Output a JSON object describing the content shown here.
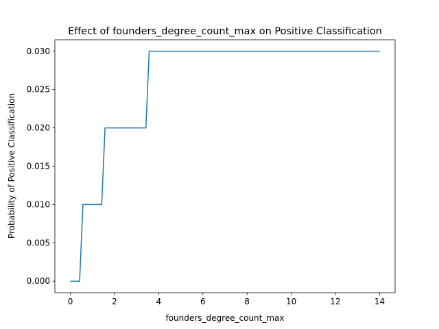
{
  "chart_data": {
    "type": "line",
    "title": "Effect of founders_degree_count_max on Positive Classification",
    "xlabel": "founders_degree_count_max",
    "ylabel": "Probability of Positive Classification",
    "xlim": [
      -0.7,
      14.7
    ],
    "ylim": [
      -0.0015,
      0.0315
    ],
    "x_ticks": [
      0,
      2,
      4,
      6,
      8,
      10,
      12,
      14
    ],
    "x_tick_labels": [
      "0",
      "2",
      "4",
      "6",
      "8",
      "10",
      "12",
      "14"
    ],
    "y_ticks": [
      0.0,
      0.005,
      0.01,
      0.015,
      0.02,
      0.025,
      0.03
    ],
    "y_tick_labels": [
      "0.000",
      "0.005",
      "0.010",
      "0.015",
      "0.020",
      "0.025",
      "0.030"
    ],
    "grid": false,
    "series": [
      {
        "color": "#1f77b4",
        "x": [
          0,
          0.42,
          0.57,
          1.42,
          1.57,
          3.42,
          3.57,
          14
        ],
        "y": [
          0.0,
          0.0,
          0.01,
          0.01,
          0.02,
          0.02,
          0.03,
          0.03
        ]
      }
    ]
  }
}
